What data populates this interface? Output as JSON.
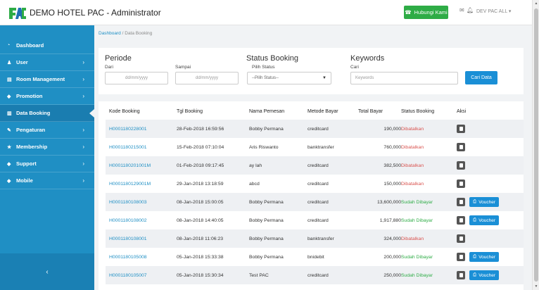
{
  "header": {
    "brand": "DEMO HOTEL PAC - Administrator",
    "contact_label": "Hubungi Kami",
    "user_menu": "DEV PAC ALL",
    "icons": {
      "contact": "phone-icon",
      "mail": "envelope-icon",
      "bell": "bell-icon"
    },
    "colors": {
      "contact": "#2eac46",
      "logo_blue": "#1f6fb2",
      "logo_green": "#2eac46"
    }
  },
  "sidebar": {
    "color": "#1f8fc4",
    "items": [
      {
        "label": "Dashboard",
        "icon": "dashboard-icon",
        "chevron": false
      },
      {
        "label": "User",
        "icon": "user-icon",
        "chevron": true
      },
      {
        "label": "Room Management",
        "icon": "room-icon",
        "chevron": true
      },
      {
        "label": "Promotion",
        "icon": "tag-icon",
        "chevron": true
      },
      {
        "label": "Data Booking",
        "icon": "book-icon",
        "chevron": false,
        "active": true
      },
      {
        "label": "Pengaturan",
        "icon": "wrench-icon",
        "chevron": true
      },
      {
        "label": "Membership",
        "icon": "star-icon",
        "chevron": true
      },
      {
        "label": "Support",
        "icon": "tag-icon",
        "chevron": true
      },
      {
        "label": "Mobile",
        "icon": "tag-icon",
        "chevron": true
      }
    ],
    "collapse": "‹"
  },
  "breadcrumb": {
    "home": "Dashboard",
    "separator": "/",
    "current": "Data Booking"
  },
  "filters": {
    "periode": {
      "title": "Periode",
      "from_label": "Dari",
      "from_placeholder": "dd/mm/yyyy",
      "to_label": "Sampai",
      "to_placeholder": "dd/mm/yyyy"
    },
    "status": {
      "title": "Status Booking",
      "label": "Pilih Status",
      "selected": "--Pilih Status--"
    },
    "keywords": {
      "title": "Keywords",
      "label": "Cari",
      "placeholder": "Keywords"
    },
    "search_button": "Cari Data"
  },
  "table": {
    "headers": {
      "code": "Kode Booking",
      "date": "Tgl Booking",
      "name": "Nama Pemesan",
      "method": "Metode Bayar",
      "total": "Total Bayar",
      "status": "Status Booking",
      "action": "Aksi"
    },
    "voucher_label": "Voucher",
    "rows": [
      {
        "code": "H0001180228001",
        "date": "28-Feb-2018 16:59:56",
        "name": "Bobby Permana",
        "method": "creditcard",
        "total": "190,000",
        "status": "Dibatalkan",
        "paid": false
      },
      {
        "code": "H0001180215001",
        "date": "15-Feb-2018 07:10:04",
        "name": "Aris Riswanto",
        "method": "banktransfer",
        "total": "760,000",
        "status": "Dibatalkan",
        "paid": false
      },
      {
        "code": "H0001180201001M",
        "date": "01-Feb-2018 09:17:45",
        "name": "ay lah",
        "method": "creditcard",
        "total": "382,500",
        "status": "Dibatalkan",
        "paid": false
      },
      {
        "code": "H0001180129001M",
        "date": "29-Jan-2018 13:18:59",
        "name": "abcd",
        "method": "creditcard",
        "total": "150,000",
        "status": "Dibatalkan",
        "paid": false
      },
      {
        "code": "H0001180108003",
        "date": "08-Jan-2018 15:00:05",
        "name": "Bobby Permana",
        "method": "creditcard",
        "total": "13,600,000",
        "status": "Sudah Dibayar",
        "paid": true
      },
      {
        "code": "H0001180108002",
        "date": "08-Jan-2018 14:40:05",
        "name": "Bobby Permana",
        "method": "creditcard",
        "total": "1,917,880",
        "status": "Sudah Dibayar",
        "paid": true
      },
      {
        "code": "H0001180108001",
        "date": "08-Jan-2018 11:06:23",
        "name": "Bobby Permana",
        "method": "banktransfer",
        "total": "324,000",
        "status": "Dibatalkan",
        "paid": false
      },
      {
        "code": "H0001180105008",
        "date": "05-Jan-2018 15:33:38",
        "name": "Bobby Permana",
        "method": "bnidebit",
        "total": "200,000",
        "status": "Sudah Dibayar",
        "paid": true
      },
      {
        "code": "H0001180105007",
        "date": "05-Jan-2018 15:30:34",
        "name": "Test PAC",
        "method": "creditcard",
        "total": "250,000",
        "status": "Sudah Dibayar",
        "paid": true
      }
    ]
  },
  "status_colors": {
    "cancelled": "#d9534f",
    "paid": "#2eac46"
  }
}
